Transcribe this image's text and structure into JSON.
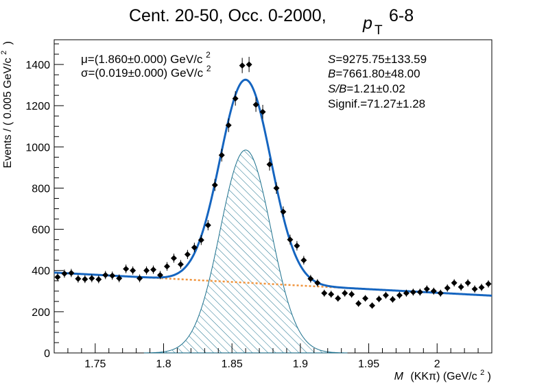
{
  "chart_data": {
    "type": "scatter",
    "title": "Cent. 20-50, Occ. 0-2000,",
    "title_pt_symbol": "p",
    "title_pt_subscript": "T",
    "title_pt_range": "6-8",
    "xlabel_italic": "M",
    "xlabel_rest": "(KKπ) (GeV/c",
    "xlabel_sup": "2",
    "xlabel_close": ")",
    "ylabel_main": "Events / ( 0.005 GeV/c",
    "ylabel_sup": "2",
    "ylabel_close": ")",
    "xlim": [
      1.72,
      2.04
    ],
    "ylim": [
      0,
      1520
    ],
    "x_ticks": [
      1.75,
      1.8,
      1.85,
      1.9,
      1.95,
      2.0
    ],
    "x_tick_labels": [
      "1.75",
      "1.8",
      "1.85",
      "1.9",
      "1.95",
      "2"
    ],
    "y_ticks": [
      0,
      200,
      400,
      600,
      800,
      1000,
      1200,
      1400
    ],
    "y_tick_labels": [
      "0",
      "200",
      "400",
      "600",
      "800",
      "1000",
      "1200",
      "1400"
    ],
    "grid": false,
    "fit_text": {
      "mu_line": "μ=(1.860±0.000) GeV/c",
      "mu_sup": "2",
      "sigma_line": "σ=(0.019±0.000) GeV/c",
      "sigma_sup": "2"
    },
    "stats": {
      "S_label": "S",
      "S_value": "=9275.75±133.59",
      "B_label": "B",
      "B_value": "=7661.80±48.00",
      "SB_label": "S/B",
      "SB_value": "=1.21±0.02",
      "signif": "Signif.=71.27±1.28"
    },
    "model": {
      "signal_mean": 1.86,
      "signal_sigma": 0.0186,
      "signal_peak": 985,
      "background_slope": -350,
      "background_intercept": 992,
      "x_range": [
        1.72,
        2.04
      ]
    },
    "colors": {
      "points": "#000000",
      "total_fit": "#1565c0",
      "signal_fill": "#1a6f8c",
      "background_fit": "#f0943c"
    },
    "series": [
      {
        "x": [
          1.7225,
          1.7275,
          1.7325,
          1.7375,
          1.7425,
          1.7475,
          1.7525,
          1.7575,
          1.7625,
          1.7675,
          1.7725,
          1.7775,
          1.7825,
          1.7875,
          1.7925,
          1.7975,
          1.8025,
          1.8075,
          1.8125,
          1.8175,
          1.8225,
          1.8275,
          1.8325,
          1.8375,
          1.8425,
          1.8475,
          1.8525,
          1.8575,
          1.8625,
          1.8675,
          1.8725,
          1.8775,
          1.8825,
          1.8875,
          1.8925,
          1.8975,
          1.9025,
          1.9075,
          1.9125,
          1.9175,
          1.9225,
          1.9275,
          1.9325,
          1.9375,
          1.9425,
          1.9475,
          1.9525,
          1.9575,
          1.9625,
          1.9675,
          1.9725,
          1.9775,
          1.9825,
          1.9875,
          1.9925,
          1.9975,
          2.0025,
          2.0075,
          2.0125,
          2.0175,
          2.0225,
          2.0275,
          2.0325,
          2.0375
        ],
        "y": [
          368,
          385,
          388,
          360,
          358,
          362,
          357,
          378,
          375,
          362,
          408,
          400,
          362,
          400,
          404,
          378,
          420,
          460,
          430,
          478,
          512,
          548,
          620,
          815,
          960,
          1105,
          1235,
          1395,
          1400,
          1205,
          1170,
          915,
          800,
          685,
          550,
          520,
          450,
          360,
          340,
          290,
          285,
          265,
          290,
          285,
          240,
          265,
          230,
          262,
          280,
          260,
          280,
          290,
          295,
          295,
          310,
          300,
          290,
          315,
          340,
          320,
          340,
          310,
          318,
          335
        ],
        "yerr": [
          20,
          20,
          20,
          19,
          19,
          19,
          19,
          20,
          20,
          19,
          21,
          20,
          19,
          20,
          20,
          20,
          21,
          22,
          21,
          22,
          23,
          24,
          25,
          29,
          31,
          33,
          35,
          37,
          37,
          35,
          34,
          30,
          28,
          26,
          24,
          23,
          21,
          19,
          18,
          17,
          17,
          16,
          17,
          17,
          16,
          16,
          15,
          16,
          17,
          16,
          17,
          17,
          17,
          17,
          18,
          17,
          17,
          18,
          18,
          18,
          18,
          18,
          18,
          18
        ]
      }
    ]
  }
}
